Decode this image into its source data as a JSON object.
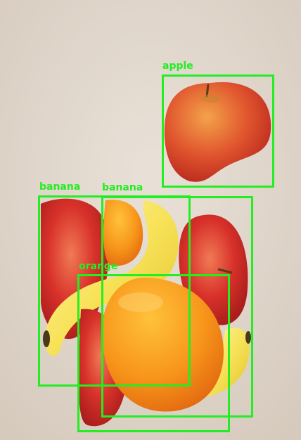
{
  "detections": [
    {
      "label": "apple"
    },
    {
      "label": "banana"
    },
    {
      "label": "banana"
    },
    {
      "label": "orange"
    }
  ],
  "colors": {
    "box": "#22ee22",
    "background": "#e2d8cd"
  }
}
